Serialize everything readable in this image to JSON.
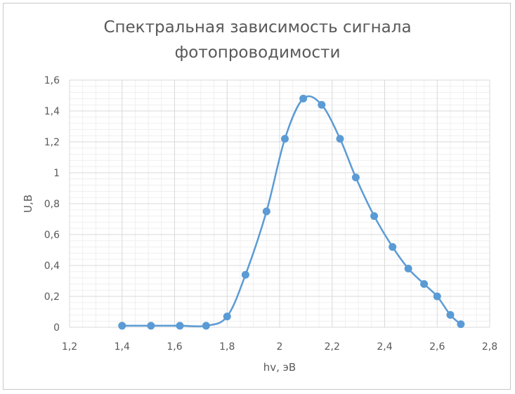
{
  "chart_data": {
    "type": "scatter",
    "title_lines": [
      "Спектральная зависимость сигнала",
      "фотопроводимости"
    ],
    "xlabel": "hv, эВ",
    "ylabel": "U,B",
    "xlim": [
      1.2,
      2.8
    ],
    "ylim": [
      0,
      1.6
    ],
    "x_ticks": [
      1.2,
      1.4,
      1.6,
      1.8,
      2.0,
      2.2,
      2.4,
      2.6,
      2.8
    ],
    "x_tick_labels": [
      "1,2",
      "1,4",
      "1,6",
      "1,8",
      "2",
      "2,2",
      "2,4",
      "2,6",
      "2,8"
    ],
    "y_ticks": [
      0,
      0.2,
      0.4,
      0.6,
      0.8,
      1.0,
      1.2,
      1.4,
      1.6
    ],
    "y_tick_labels": [
      "0",
      "0,2",
      "0,4",
      "0,6",
      "0,8",
      "1",
      "1,2",
      "1,4",
      "1,6"
    ],
    "grid": true,
    "minor_grid": true,
    "smooth_line": true,
    "series": [
      {
        "color": "#5b9bd5",
        "points": [
          [
            1.4,
            0.01
          ],
          [
            1.51,
            0.01
          ],
          [
            1.62,
            0.01
          ],
          [
            1.72,
            0.01
          ],
          [
            1.8,
            0.07
          ],
          [
            1.87,
            0.34
          ],
          [
            1.95,
            0.75
          ],
          [
            2.02,
            1.22
          ],
          [
            2.09,
            1.48
          ],
          [
            2.16,
            1.44
          ],
          [
            2.23,
            1.22
          ],
          [
            2.29,
            0.97
          ],
          [
            2.36,
            0.72
          ],
          [
            2.43,
            0.52
          ],
          [
            2.49,
            0.38
          ],
          [
            2.55,
            0.28
          ],
          [
            2.6,
            0.2
          ],
          [
            2.65,
            0.08
          ],
          [
            2.69,
            0.02
          ]
        ]
      }
    ]
  }
}
